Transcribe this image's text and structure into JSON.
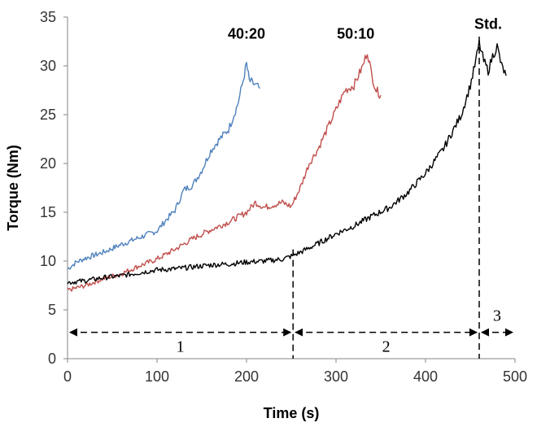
{
  "chart_data": {
    "type": "line",
    "title": "",
    "xlabel": "Time (s)",
    "ylabel": "Torque (Nm)",
    "xlim": [
      0,
      500
    ],
    "ylim": [
      0,
      35
    ],
    "xticks": [
      "0",
      "100",
      "200",
      "300",
      "400",
      "500"
    ],
    "yticks": [
      "0",
      "5",
      "10",
      "15",
      "20",
      "25",
      "30",
      "35"
    ],
    "grid": false,
    "legend": "none (series labelled directly above curves)",
    "series": [
      {
        "name": "40:20",
        "color": "#4f81bd",
        "x": [
          0,
          10,
          20,
          40,
          60,
          80,
          100,
          110,
          120,
          130,
          140,
          150,
          160,
          170,
          180,
          190,
          195,
          200,
          203,
          210,
          215
        ],
        "y": [
          9.2,
          9.9,
          10.3,
          10.9,
          11.7,
          12.4,
          13.1,
          14.2,
          15.2,
          17.3,
          17.8,
          19.3,
          21.3,
          22.5,
          23.5,
          26.0,
          28.0,
          30.2,
          28.5,
          28.0,
          27.7
        ]
      },
      {
        "name": "50:10",
        "color": "#c0504d",
        "x": [
          0,
          20,
          40,
          60,
          80,
          100,
          120,
          140,
          160,
          180,
          200,
          210,
          220,
          240,
          250,
          260,
          270,
          280,
          290,
          300,
          310,
          320,
          330,
          335,
          340,
          345,
          350
        ],
        "y": [
          7.0,
          7.5,
          8.2,
          8.7,
          9.5,
          10.2,
          11.2,
          12.3,
          13.2,
          14.0,
          15.0,
          16.0,
          15.5,
          16.0,
          15.6,
          17.5,
          20.0,
          21.5,
          23.5,
          25.5,
          27.5,
          28.0,
          30.0,
          31.5,
          29.0,
          27.5,
          27.0
        ]
      },
      {
        "name": "Std.",
        "color": "#000000",
        "x": [
          0,
          20,
          40,
          60,
          80,
          100,
          120,
          140,
          160,
          180,
          200,
          220,
          240,
          250,
          260,
          280,
          300,
          320,
          340,
          360,
          380,
          400,
          420,
          440,
          450,
          455,
          460,
          465,
          470,
          475,
          480,
          485,
          490
        ],
        "y": [
          7.8,
          8.0,
          8.3,
          8.5,
          8.8,
          9.1,
          9.2,
          9.4,
          9.6,
          9.7,
          9.9,
          10.0,
          10.2,
          10.5,
          10.9,
          11.8,
          12.8,
          13.6,
          14.6,
          15.5,
          17.0,
          19.0,
          21.5,
          25.0,
          28.0,
          30.0,
          32.3,
          30.5,
          29.5,
          31.0,
          32.0,
          30.0,
          29.0
        ]
      }
    ],
    "markers": {
      "vlines_x": [
        252,
        460
      ],
      "arrow_y": 2.7,
      "phases": [
        {
          "label": "1",
          "from": 0,
          "to": 252
        },
        {
          "label": "2",
          "from": 252,
          "to": 460
        },
        {
          "label": "3",
          "from": 460,
          "to": 500
        }
      ]
    }
  }
}
